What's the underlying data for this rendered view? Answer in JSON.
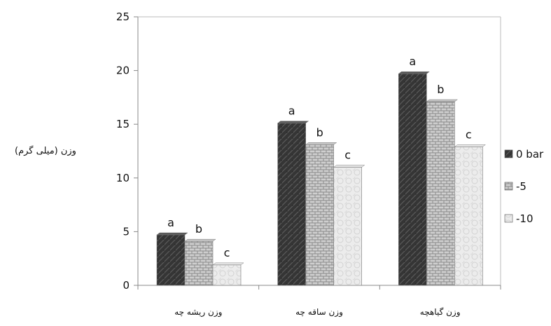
{
  "chart_data": {
    "type": "bar",
    "title": "",
    "xlabel": "",
    "ylabel": "وزن (میلی گرم)",
    "categories": [
      "وزن ریشه چه",
      "وزن ساقه چه",
      "وزن گیاهچه"
    ],
    "series": [
      {
        "name": "0 bar",
        "values": [
          4.7,
          15.1,
          19.7
        ],
        "letters": [
          "a",
          "a",
          "a"
        ],
        "color": "#3a3a3a"
      },
      {
        "name": "-5",
        "values": [
          4.1,
          13.1,
          17.1
        ],
        "letters": [
          "b",
          "b",
          "b"
        ],
        "color": "#bdbdbd"
      },
      {
        "name": "-10",
        "values": [
          1.9,
          11.0,
          12.9
        ],
        "letters": [
          "c",
          "c",
          "c"
        ],
        "color": "#e6e6e6"
      }
    ],
    "ylim": [
      0,
      25
    ],
    "yticks": [
      0,
      5,
      10,
      15,
      20,
      25
    ],
    "grid": false,
    "legend": "right"
  }
}
